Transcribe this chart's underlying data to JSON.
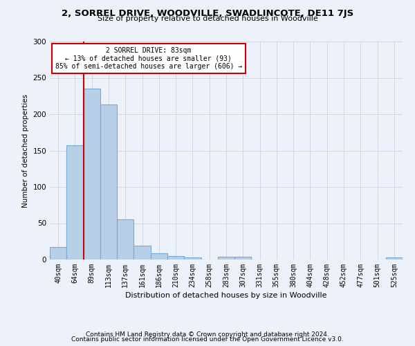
{
  "title": "2, SORREL DRIVE, WOODVILLE, SWADLINCOTE, DE11 7JS",
  "subtitle": "Size of property relative to detached houses in Woodville",
  "xlabel": "Distribution of detached houses by size in Woodville",
  "ylabel": "Number of detached properties",
  "footer1": "Contains HM Land Registry data © Crown copyright and database right 2024.",
  "footer2": "Contains public sector information licensed under the Open Government Licence v3.0.",
  "bin_labels": [
    "40sqm",
    "64sqm",
    "89sqm",
    "113sqm",
    "137sqm",
    "161sqm",
    "186sqm",
    "210sqm",
    "234sqm",
    "258sqm",
    "283sqm",
    "307sqm",
    "331sqm",
    "355sqm",
    "380sqm",
    "404sqm",
    "428sqm",
    "452sqm",
    "477sqm",
    "501sqm",
    "525sqm"
  ],
  "bar_values": [
    17,
    157,
    235,
    213,
    55,
    19,
    9,
    5,
    3,
    0,
    4,
    4,
    0,
    0,
    0,
    0,
    0,
    0,
    0,
    0,
    3
  ],
  "bar_color": "#b8cfe8",
  "bar_edgecolor": "#7aa8d4",
  "vline_x": 1.5,
  "vline_color": "#cc0000",
  "annotation_text": "2 SORREL DRIVE: 83sqm\n← 13% of detached houses are smaller (93)\n85% of semi-detached houses are larger (606) →",
  "annotation_box_color": "#ffffff",
  "annotation_box_edgecolor": "#cc0000",
  "grid_color": "#d0d8e8",
  "ylim": [
    0,
    300
  ],
  "yticks": [
    0,
    50,
    100,
    150,
    200,
    250,
    300
  ],
  "bg_color": "#edf2fa",
  "title_fontsize": 9.5,
  "subtitle_fontsize": 8,
  "ylabel_fontsize": 7.5,
  "xlabel_fontsize": 8,
  "tick_fontsize": 7,
  "footer_fontsize": 6.5,
  "annot_fontsize": 7
}
